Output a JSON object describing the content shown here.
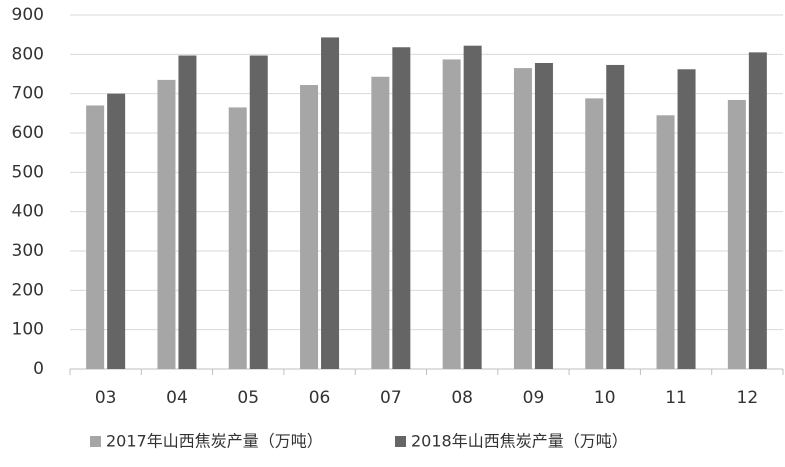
{
  "chart_data": {
    "type": "bar",
    "categories": [
      "03",
      "04",
      "05",
      "06",
      "07",
      "08",
      "09",
      "10",
      "11",
      "12"
    ],
    "series": [
      {
        "name": "2017年山西焦炭产量（万吨）",
        "color": "#a6a6a6",
        "values": [
          670,
          735,
          665,
          722,
          743,
          787,
          765,
          688,
          645,
          684
        ]
      },
      {
        "name": "2018年山西焦炭产量（万吨）",
        "color": "#656565",
        "values": [
          700,
          797,
          797,
          843,
          818,
          822,
          778,
          773,
          762,
          805
        ]
      }
    ],
    "ylim": [
      0,
      900
    ],
    "yticks": [
      0,
      100,
      200,
      300,
      400,
      500,
      600,
      700,
      800,
      900
    ],
    "grid": true,
    "legend": "bottom"
  }
}
